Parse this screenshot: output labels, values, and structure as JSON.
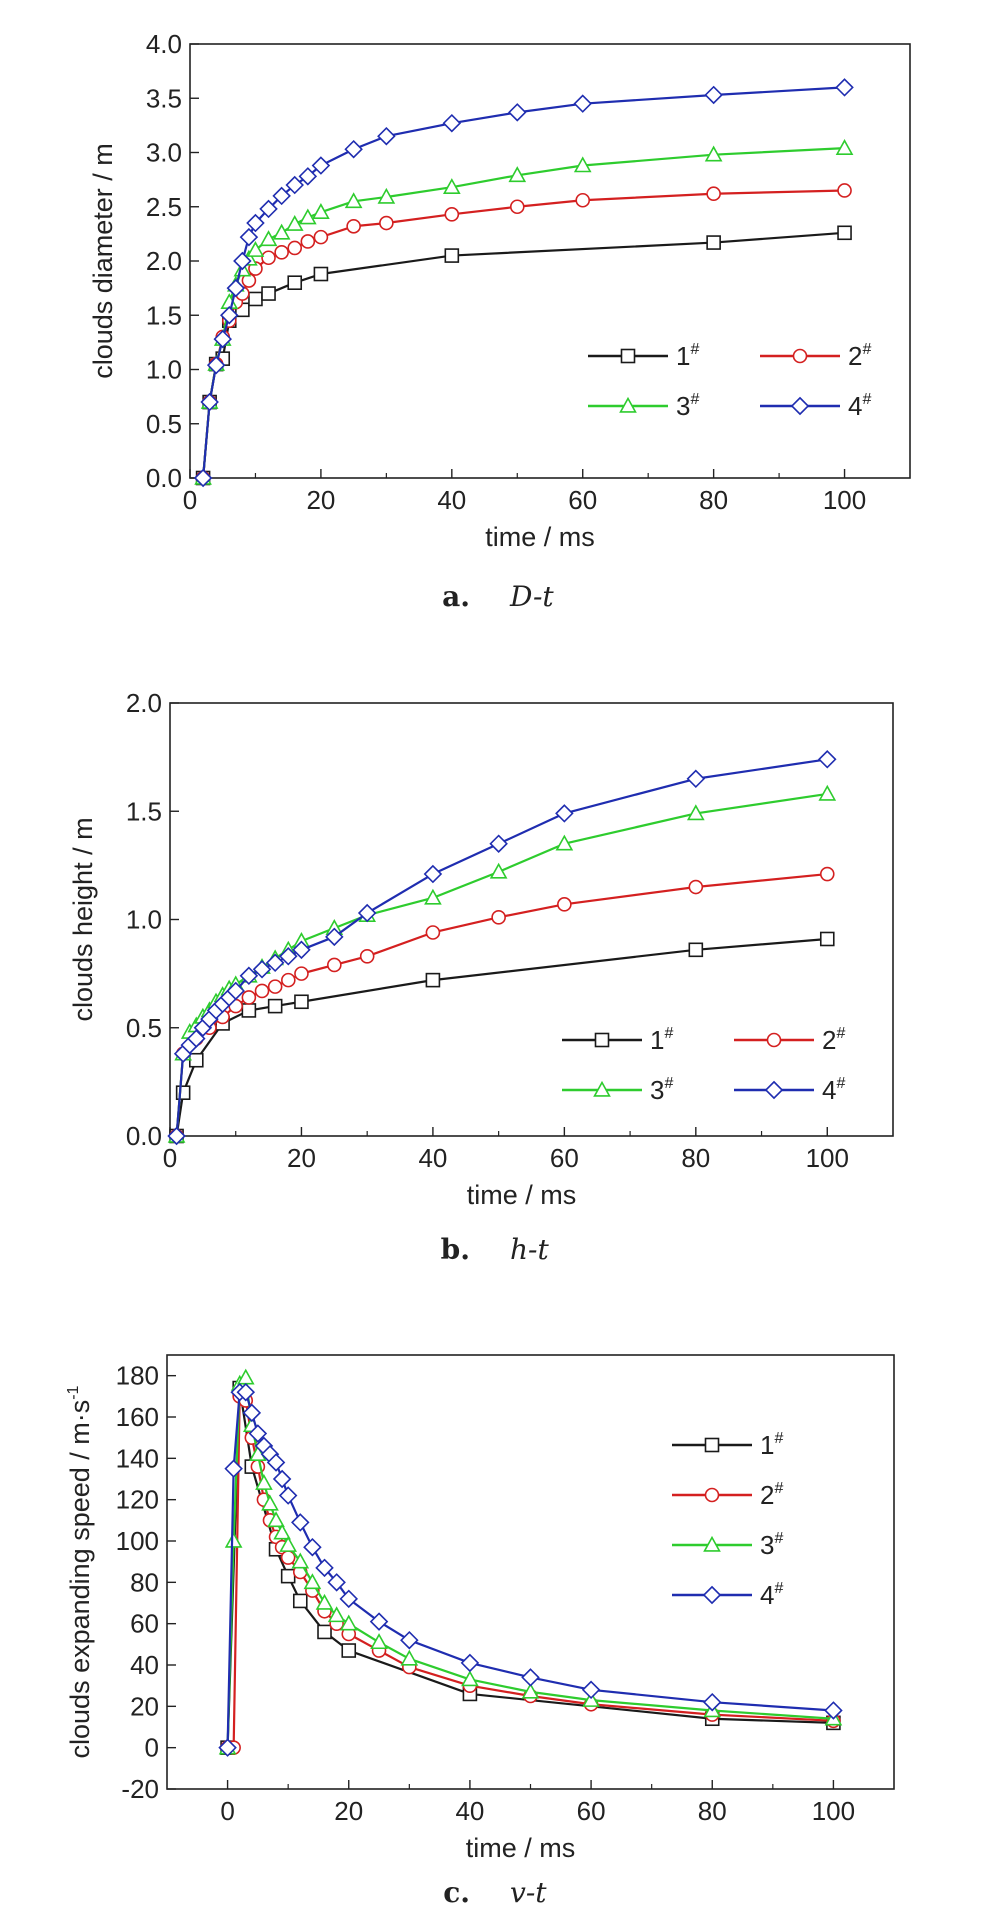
{
  "chart_data": [
    {
      "type": "line",
      "caption_letter": "a.",
      "caption_text": "D-t",
      "xlabel": "time / ms",
      "ylabel": "clouds diameter / m",
      "xlim": [
        0,
        110
      ],
      "ylim": [
        0,
        4.0
      ],
      "xticks": [
        "0",
        "20",
        "40",
        "60",
        "80",
        "100"
      ],
      "yticks": [
        "0.0",
        "0.5",
        "1.0",
        "1.5",
        "2.0",
        "2.5",
        "3.0",
        "3.5",
        "4.0"
      ],
      "legend_layout": "2x2",
      "legend_position": "bottom-right",
      "grid": false,
      "series": [
        {
          "name": "1#",
          "color": "#1a1a1a",
          "marker": "square",
          "x": [
            2,
            3,
            4,
            5,
            6,
            8,
            10,
            12,
            16,
            20,
            40,
            80,
            100
          ],
          "y": [
            0.0,
            0.7,
            1.05,
            1.1,
            1.45,
            1.55,
            1.65,
            1.7,
            1.8,
            1.88,
            2.05,
            2.17,
            2.26
          ]
        },
        {
          "name": "2#",
          "color": "#d42020",
          "marker": "circle",
          "x": [
            2,
            3,
            4,
            5,
            6,
            7,
            8,
            9,
            10,
            12,
            14,
            16,
            18,
            20,
            25,
            30,
            40,
            50,
            60,
            80,
            100
          ],
          "y": [
            0.0,
            0.7,
            1.05,
            1.3,
            1.45,
            1.62,
            1.7,
            1.82,
            1.93,
            2.03,
            2.08,
            2.12,
            2.18,
            2.22,
            2.32,
            2.35,
            2.43,
            2.5,
            2.56,
            2.62,
            2.65
          ]
        },
        {
          "name": "3#",
          "color": "#2ecc2e",
          "marker": "triangle",
          "x": [
            2,
            3,
            4,
            5,
            6,
            7,
            8,
            9,
            10,
            12,
            14,
            16,
            18,
            20,
            25,
            30,
            40,
            50,
            60,
            80,
            100
          ],
          "y": [
            0.0,
            0.7,
            1.05,
            1.28,
            1.62,
            1.78,
            1.92,
            2.02,
            2.1,
            2.2,
            2.26,
            2.34,
            2.4,
            2.45,
            2.55,
            2.59,
            2.68,
            2.79,
            2.88,
            2.98,
            3.04
          ]
        },
        {
          "name": "4#",
          "color": "#1f2db0",
          "marker": "diamond",
          "x": [
            2,
            3,
            4,
            5,
            6,
            7,
            8,
            9,
            10,
            12,
            14,
            16,
            18,
            20,
            25,
            30,
            40,
            50,
            60,
            80,
            100
          ],
          "y": [
            0.0,
            0.7,
            1.04,
            1.28,
            1.5,
            1.75,
            2.0,
            2.22,
            2.35,
            2.48,
            2.6,
            2.7,
            2.78,
            2.88,
            3.03,
            3.15,
            3.27,
            3.37,
            3.45,
            3.53,
            3.6
          ]
        }
      ]
    },
    {
      "type": "line",
      "caption_letter": "b.",
      "caption_text": "h-t",
      "xlabel": "time / ms",
      "ylabel": "clouds height / m",
      "xlim": [
        0,
        110
      ],
      "ylim": [
        0,
        2.0
      ],
      "xticks": [
        "0",
        "20",
        "40",
        "60",
        "80",
        "100"
      ],
      "yticks": [
        "0.0",
        "0.5",
        "1.0",
        "1.5",
        "2.0"
      ],
      "legend_layout": "2x2",
      "legend_position": "bottom-right",
      "grid": false,
      "series": [
        {
          "name": "1#",
          "color": "#1a1a1a",
          "marker": "square",
          "x": [
            1,
            2,
            4,
            8,
            12,
            16,
            20,
            40,
            80,
            100
          ],
          "y": [
            0.0,
            0.2,
            0.35,
            0.52,
            0.58,
            0.6,
            0.62,
            0.72,
            0.86,
            0.91
          ]
        },
        {
          "name": "2#",
          "color": "#d42020",
          "marker": "circle",
          "x": [
            1,
            2,
            4,
            6,
            8,
            10,
            12,
            14,
            16,
            18,
            20,
            25,
            30,
            40,
            50,
            60,
            80,
            100
          ],
          "y": [
            0.0,
            0.38,
            0.45,
            0.5,
            0.55,
            0.6,
            0.64,
            0.67,
            0.69,
            0.72,
            0.75,
            0.79,
            0.83,
            0.94,
            1.01,
            1.07,
            1.15,
            1.21
          ]
        },
        {
          "name": "3#",
          "color": "#2ecc2e",
          "marker": "triangle",
          "x": [
            1,
            2,
            3,
            4,
            5,
            6,
            7,
            8,
            9,
            10,
            12,
            14,
            16,
            18,
            20,
            25,
            30,
            40,
            50,
            60,
            80,
            100
          ],
          "y": [
            0.0,
            0.38,
            0.48,
            0.51,
            0.55,
            0.58,
            0.62,
            0.65,
            0.68,
            0.7,
            0.74,
            0.78,
            0.82,
            0.86,
            0.9,
            0.96,
            1.02,
            1.1,
            1.22,
            1.35,
            1.49,
            1.58
          ]
        },
        {
          "name": "4#",
          "color": "#1f2db0",
          "marker": "diamond",
          "x": [
            1,
            2,
            3,
            4,
            5,
            6,
            7,
            8,
            9,
            10,
            12,
            14,
            16,
            18,
            20,
            25,
            30,
            40,
            50,
            60,
            80,
            100
          ],
          "y": [
            0.0,
            0.38,
            0.42,
            0.45,
            0.5,
            0.54,
            0.58,
            0.61,
            0.64,
            0.67,
            0.74,
            0.77,
            0.8,
            0.83,
            0.86,
            0.92,
            1.03,
            1.21,
            1.35,
            1.49,
            1.65,
            1.74
          ]
        }
      ]
    },
    {
      "type": "line",
      "caption_letter": "c.",
      "caption_text": "v-t",
      "xlabel": "time / ms",
      "ylabel": "clouds expanding speed / m·s",
      "ylabel_superscript": "-1",
      "xlim": [
        -10,
        110
      ],
      "ylim": [
        -20,
        190
      ],
      "xticks": [
        "0",
        "20",
        "40",
        "60",
        "80",
        "100"
      ],
      "yticks": [
        "-20",
        "0",
        "20",
        "40",
        "60",
        "80",
        "100",
        "120",
        "140",
        "160",
        "180"
      ],
      "legend_layout": "column",
      "legend_position": "top-right",
      "grid": false,
      "series": [
        {
          "name": "1#",
          "color": "#1a1a1a",
          "marker": "square",
          "x": [
            0,
            2,
            4,
            8,
            10,
            12,
            16,
            20,
            40,
            80,
            100
          ],
          "y": [
            0,
            174,
            136,
            96,
            83,
            71,
            56,
            47,
            26,
            14,
            12
          ]
        },
        {
          "name": "2#",
          "color": "#d42020",
          "marker": "circle",
          "x": [
            0,
            1,
            2,
            3,
            4,
            5,
            6,
            7,
            8,
            9,
            10,
            12,
            14,
            16,
            18,
            20,
            25,
            30,
            40,
            50,
            60,
            80,
            100
          ],
          "y": [
            0,
            0,
            170,
            168,
            150,
            136,
            120,
            110,
            102,
            97,
            92,
            85,
            76,
            66,
            60,
            55,
            47,
            39,
            30,
            25,
            21,
            16,
            13
          ]
        },
        {
          "name": "3#",
          "color": "#2ecc2e",
          "marker": "triangle",
          "x": [
            0,
            1,
            2,
            3,
            4,
            5,
            6,
            7,
            8,
            9,
            10,
            12,
            14,
            16,
            18,
            20,
            25,
            30,
            40,
            50,
            60,
            80,
            100
          ],
          "y": [
            0,
            100,
            176,
            179,
            156,
            142,
            128,
            118,
            110,
            104,
            98,
            90,
            80,
            70,
            64,
            60,
            51,
            43,
            33,
            27,
            23,
            18,
            14
          ]
        },
        {
          "name": "4#",
          "color": "#1f2db0",
          "marker": "diamond",
          "x": [
            0,
            1,
            2,
            3,
            4,
            5,
            6,
            7,
            8,
            9,
            10,
            12,
            14,
            16,
            18,
            20,
            25,
            30,
            40,
            50,
            60,
            80,
            100
          ],
          "y": [
            0,
            135,
            172,
            172,
            162,
            152,
            146,
            142,
            138,
            130,
            122,
            109,
            97,
            87,
            80,
            72,
            61,
            52,
            41,
            34,
            28,
            22,
            18
          ]
        }
      ]
    }
  ]
}
